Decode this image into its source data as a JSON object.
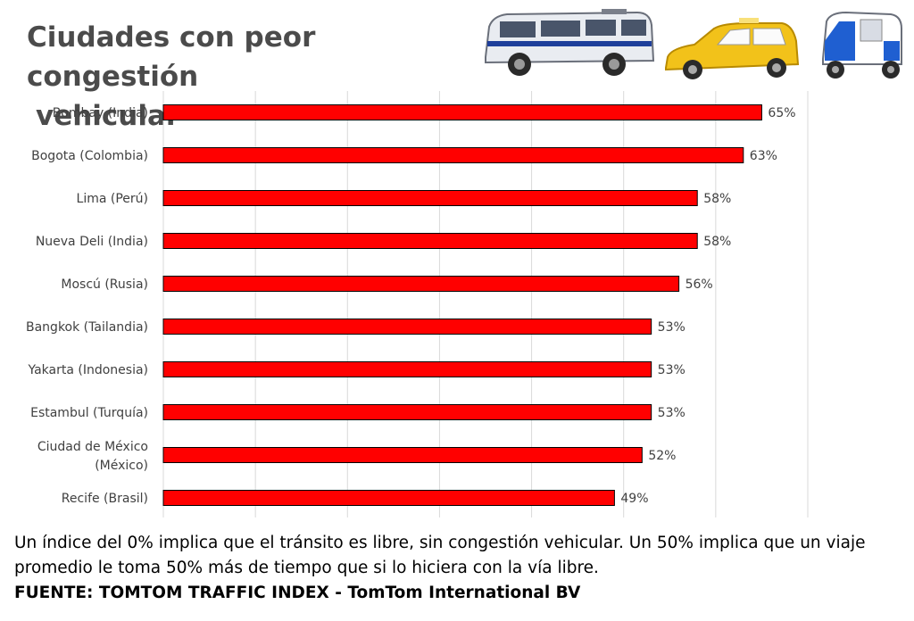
{
  "title_lines": [
    "Ciudades con peor congestión",
    "vehicular"
  ],
  "vehicles": [
    {
      "name": "minibus",
      "color": "#e9ecf1",
      "accent": "#1e3f9b"
    },
    {
      "name": "taxi",
      "color": "#f2c21a",
      "accent": "#e0a800"
    },
    {
      "name": "mototaxi",
      "color": "#1f5fd1",
      "accent": "#ffffff"
    }
  ],
  "chart_data": {
    "type": "bar",
    "orientation": "horizontal",
    "title": "Ciudades con peor congestión vehicular",
    "categories": [
      [
        "Bombay (India)"
      ],
      [
        "Bogota (Colombia)"
      ],
      [
        "Lima (Perú)"
      ],
      [
        "Nueva Deli (India)"
      ],
      [
        "Moscú (Rusia)"
      ],
      [
        "Bangkok (Tailandia)"
      ],
      [
        "Yakarta (Indonesia)"
      ],
      [
        "Estambul (Turquía)"
      ],
      [
        "Ciudad de México",
        "(México)"
      ],
      [
        "Recife (Brasil)"
      ]
    ],
    "values": [
      65,
      63,
      58,
      58,
      56,
      53,
      53,
      53,
      52,
      49
    ],
    "value_suffix": "%",
    "xlim": [
      0,
      70
    ],
    "grid_step": 10,
    "grid": true,
    "bar_color": "#ff0000",
    "bar_edge_color": "#000000"
  },
  "footer": {
    "note": "Un índice del 0% implica que el tránsito es libre, sin congestión vehicular. Un 50% implica que un viaje promedio le toma 50% más de tiempo que si lo hiciera con la vía libre.",
    "source": "FUENTE: TOMTOM TRAFFIC INDEX -  TomTom International BV"
  }
}
